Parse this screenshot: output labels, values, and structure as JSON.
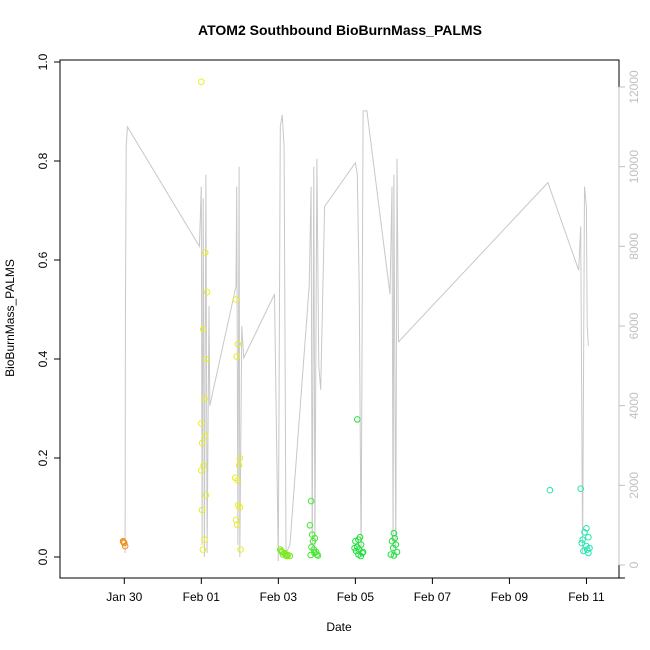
{
  "chart_data": {
    "type": "scatter",
    "title": "ATOM2 Southbound BioBurnMass_PALMS",
    "xlabel": "Date",
    "ylabel": "BioBurnMass_PALMS",
    "x_ticks": [
      "Jan 30",
      "Feb 01",
      "Feb 03",
      "Feb 05",
      "Feb 07",
      "Feb 09",
      "Feb 11"
    ],
    "x_range_days": [
      -2.15,
      11.3
    ],
    "ylim": [
      0,
      1.0
    ],
    "y_ticks": [
      "0.0",
      "0.2",
      "0.4",
      "0.6",
      "0.8",
      "1.0"
    ],
    "y2_range": [
      0,
      12000
    ],
    "y2_ticks": [
      "0",
      "2000",
      "4000",
      "6000",
      "8000",
      "10000",
      "12000"
    ],
    "y2_color": "#c0c0c0",
    "grid": false,
    "legend": "none",
    "series": [
      {
        "color": "#f0901a",
        "points": [
          [
            -1.03,
            0.032
          ],
          [
            -1.0,
            0.028
          ],
          [
            -0.98,
            0.022
          ],
          [
            -1.02,
            0.03
          ]
        ]
      },
      {
        "color": "#e8ef20",
        "points": [
          [
            1.0,
            0.96
          ],
          [
            1.1,
            0.615
          ],
          [
            1.15,
            0.535
          ],
          [
            1.05,
            0.46
          ],
          [
            1.12,
            0.4
          ],
          [
            1.08,
            0.32
          ],
          [
            1.0,
            0.27
          ],
          [
            1.02,
            0.23
          ],
          [
            1.1,
            0.245
          ],
          [
            1.06,
            0.185
          ],
          [
            1.0,
            0.175
          ],
          [
            1.12,
            0.125
          ],
          [
            1.02,
            0.095
          ],
          [
            1.08,
            0.035
          ],
          [
            1.04,
            0.015
          ],
          [
            1.9,
            0.52
          ],
          [
            1.95,
            0.43
          ],
          [
            1.92,
            0.405
          ],
          [
            2.0,
            0.2
          ],
          [
            1.98,
            0.185
          ],
          [
            1.88,
            0.16
          ],
          [
            1.94,
            0.155
          ],
          [
            1.96,
            0.105
          ],
          [
            2.0,
            0.1
          ],
          [
            1.9,
            0.075
          ],
          [
            1.93,
            0.065
          ],
          [
            2.02,
            0.015
          ]
        ]
      },
      {
        "color": "#7ee820",
        "points": [
          [
            3.05,
            0.015
          ],
          [
            3.1,
            0.01
          ],
          [
            3.12,
            0.005
          ],
          [
            3.15,
            0.008
          ],
          [
            3.2,
            0.003
          ],
          [
            3.22,
            0.002
          ],
          [
            3.18,
            0.006
          ],
          [
            3.25,
            0.004
          ],
          [
            3.08,
            0.012
          ],
          [
            3.3,
            0.002
          ]
        ]
      },
      {
        "color": "#44e830",
        "points": [
          [
            3.85,
            0.113
          ],
          [
            3.82,
            0.064
          ],
          [
            3.88,
            0.045
          ],
          [
            3.95,
            0.038
          ],
          [
            3.9,
            0.032
          ],
          [
            3.86,
            0.02
          ],
          [
            3.92,
            0.015
          ],
          [
            3.98,
            0.01
          ],
          [
            4.0,
            0.005
          ],
          [
            3.84,
            0.004
          ],
          [
            3.94,
            0.008
          ],
          [
            4.03,
            0.003
          ]
        ]
      },
      {
        "color": "#22e040",
        "points": [
          [
            5.05,
            0.278
          ],
          [
            5.12,
            0.04
          ],
          [
            5.08,
            0.035
          ],
          [
            5.0,
            0.032
          ],
          [
            5.15,
            0.025
          ],
          [
            5.05,
            0.02
          ],
          [
            5.1,
            0.015
          ],
          [
            5.2,
            0.01
          ],
          [
            4.98,
            0.018
          ],
          [
            5.08,
            0.005
          ],
          [
            5.14,
            0.002
          ],
          [
            5.02,
            0.012
          ],
          [
            5.18,
            0.008
          ],
          [
            6.0,
            0.048
          ],
          [
            6.02,
            0.038
          ],
          [
            5.95,
            0.032
          ],
          [
            6.05,
            0.025
          ],
          [
            5.98,
            0.018
          ],
          [
            6.08,
            0.01
          ],
          [
            5.92,
            0.005
          ],
          [
            6.0,
            0.003
          ]
        ]
      },
      {
        "color": "#22e8b0",
        "points": [
          [
            10.05,
            0.135
          ],
          [
            10.85,
            0.138
          ],
          [
            11.0,
            0.058
          ],
          [
            10.95,
            0.05
          ],
          [
            11.05,
            0.04
          ],
          [
            10.9,
            0.035
          ],
          [
            10.88,
            0.028
          ],
          [
            11.0,
            0.022
          ],
          [
            11.08,
            0.018
          ],
          [
            10.92,
            0.012
          ],
          [
            11.02,
            0.015
          ],
          [
            11.05,
            0.008
          ]
        ]
      }
    ],
    "altitude_trace": {
      "color": "#c8c8c8",
      "points": [
        [
          -0.98,
          300
        ],
        [
          -0.97,
          6000
        ],
        [
          -0.95,
          10500
        ],
        [
          -0.92,
          11000
        ],
        [
          0.95,
          8000
        ],
        [
          1.0,
          9500
        ],
        [
          1.02,
          500
        ],
        [
          1.05,
          9200
        ],
        [
          1.08,
          200
        ],
        [
          1.12,
          9800
        ],
        [
          1.15,
          300
        ],
        [
          1.2,
          6500
        ],
        [
          1.22,
          4000
        ],
        [
          1.9,
          7000
        ],
        [
          1.92,
          9500
        ],
        [
          1.95,
          500
        ],
        [
          1.98,
          10000
        ],
        [
          2.0,
          200
        ],
        [
          2.05,
          6000
        ],
        [
          2.1,
          5200
        ],
        [
          2.9,
          6800
        ],
        [
          3.0,
          100
        ],
        [
          3.05,
          11000
        ],
        [
          3.1,
          11300
        ],
        [
          3.15,
          10500
        ],
        [
          3.2,
          300
        ],
        [
          3.3,
          500
        ],
        [
          3.8,
          7000
        ],
        [
          3.85,
          9500
        ],
        [
          3.88,
          300
        ],
        [
          3.92,
          10000
        ],
        [
          3.95,
          400
        ],
        [
          4.0,
          10200
        ],
        [
          4.05,
          5000
        ],
        [
          4.1,
          4400
        ],
        [
          4.2,
          9000
        ],
        [
          5.0,
          10100
        ],
        [
          5.05,
          9800
        ],
        [
          5.1,
          7000
        ],
        [
          5.15,
          200
        ],
        [
          5.2,
          11400
        ],
        [
          5.3,
          11400
        ],
        [
          5.9,
          6800
        ],
        [
          5.95,
          9500
        ],
        [
          5.98,
          200
        ],
        [
          6.0,
          9800
        ],
        [
          6.05,
          200
        ],
        [
          6.08,
          10200
        ],
        [
          6.12,
          5600
        ],
        [
          10.0,
          9600
        ],
        [
          10.8,
          7400
        ],
        [
          10.85,
          8500
        ],
        [
          10.9,
          300
        ],
        [
          10.95,
          9500
        ],
        [
          11.0,
          9000
        ],
        [
          11.02,
          6000
        ],
        [
          11.05,
          5500
        ]
      ]
    }
  }
}
